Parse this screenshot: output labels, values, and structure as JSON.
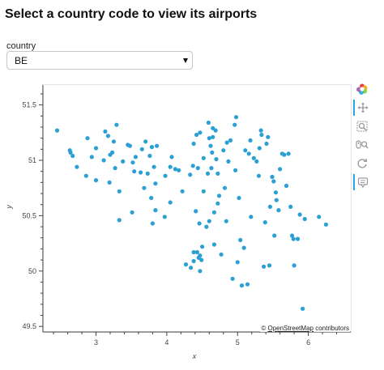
{
  "header": {
    "title": "Select a country code to view its airports"
  },
  "selector": {
    "label": "country",
    "selected": "BE"
  },
  "attribution": {
    "prefix": "© ",
    "link_text": "OpenStreetMap",
    "suffix": " contributors"
  },
  "toolbar": [
    {
      "name": "bokeh-logo-icon",
      "tool": "logo",
      "active": false
    },
    {
      "name": "pan-tool-icon",
      "tool": "pan",
      "active": true
    },
    {
      "name": "box-zoom-tool-icon",
      "tool": "box-zoom",
      "active": false
    },
    {
      "name": "wheel-zoom-tool-icon",
      "tool": "wheel-zoom",
      "active": false
    },
    {
      "name": "reset-tool-icon",
      "tool": "reset",
      "active": false
    },
    {
      "name": "hover-tool-icon",
      "tool": "hover",
      "active": true
    }
  ],
  "chart_data": {
    "type": "scatter",
    "title": "",
    "xlabel": "x",
    "ylabel": "y",
    "xlim": [
      2.25,
      6.6
    ],
    "ylim": [
      49.45,
      51.68
    ],
    "x_ticks": [
      3,
      4,
      5,
      6
    ],
    "y_ticks": [
      49.5,
      50,
      50.5,
      51,
      51.5
    ],
    "x_tick_labels": [
      "3",
      "4",
      "5",
      "6"
    ],
    "y_tick_labels": [
      "49.5",
      "50",
      "50.5",
      "51",
      "51.5"
    ],
    "grid": false,
    "point_color": "#2ca0d4",
    "x": [
      2.45,
      2.63,
      2.64,
      2.67,
      2.73,
      2.88,
      2.86,
      2.94,
      3.0,
      3.13,
      3.11,
      3.17,
      3.19,
      3.2,
      3.23,
      3.25,
      3.29,
      3.27,
      3.33,
      3.38,
      3.45,
      3.48,
      3.52,
      3.54,
      3.51,
      3.56,
      3.63,
      3.65,
      3.7,
      3.73,
      3.76,
      3.78,
      3.79,
      3.8,
      3.82,
      3.84,
      3.86,
      3.98,
      3.97,
      4.05,
      4.07,
      4.12,
      4.17,
      4.22,
      4.27,
      4.33,
      4.37,
      4.38,
      4.38,
      4.41,
      4.42,
      4.44,
      4.46,
      4.47,
      4.47,
      4.49,
      4.5,
      4.52,
      4.52,
      4.58,
      4.59,
      4.6,
      4.62,
      4.63,
      4.64,
      4.65,
      4.67,
      4.67,
      4.69,
      4.7,
      4.72,
      4.74,
      4.77,
      4.8,
      4.82,
      4.84,
      4.85,
      4.87,
      4.9,
      4.93,
      4.96,
      4.97,
      4.98,
      5.0,
      5.02,
      5.04,
      5.06,
      5.09,
      5.11,
      5.14,
      5.16,
      5.18,
      5.19,
      5.23,
      5.27,
      5.3,
      5.31,
      5.33,
      5.34,
      5.37,
      5.39,
      5.41,
      5.43,
      5.45,
      5.46,
      5.49,
      5.51,
      5.52,
      5.54,
      5.55,
      5.58,
      5.6,
      5.63,
      5.66,
      5.69,
      5.72,
      5.75,
      5.77,
      5.79,
      5.8,
      5.85,
      5.88,
      5.92,
      5.95,
      6.15,
      6.25,
      3.84,
      3.68,
      4.43,
      4.45,
      4.47,
      4.38,
      4.34,
      4.6,
      4.65,
      4.05,
      3.0,
      3.33,
      4.72,
      4.56
    ],
    "y": [
      51.27,
      51.09,
      51.07,
      51.04,
      50.94,
      51.2,
      50.86,
      51.03,
      50.82,
      51.26,
      51.0,
      51.22,
      50.8,
      51.05,
      51.07,
      51.17,
      51.32,
      50.93,
      50.72,
      50.99,
      51.14,
      51.13,
      50.98,
      50.9,
      50.53,
      51.03,
      50.89,
      51.1,
      51.17,
      50.88,
      51.04,
      50.66,
      51.12,
      50.43,
      50.94,
      50.55,
      51.13,
      50.86,
      50.49,
      50.94,
      51.03,
      50.92,
      50.91,
      50.72,
      50.06,
      50.87,
      50.95,
      51.15,
      50.17,
      50.54,
      51.23,
      50.93,
      50.43,
      51.25,
      50.14,
      50.1,
      50.22,
      51.02,
      50.72,
      50.88,
      51.34,
      51.2,
      51.13,
      50.93,
      51.07,
      51.29,
      50.53,
      50.24,
      51.27,
      51.01,
      50.61,
      50.68,
      50.15,
      51.09,
      50.75,
      50.45,
      51.16,
      50.99,
      51.18,
      49.93,
      51.32,
      50.91,
      51.39,
      50.08,
      50.66,
      50.28,
      49.87,
      50.21,
      51.09,
      49.88,
      51.06,
      51.18,
      50.49,
      51.02,
      50.99,
      50.86,
      51.11,
      51.27,
      51.23,
      50.04,
      50.44,
      51.15,
      51.21,
      50.05,
      50.58,
      50.85,
      50.81,
      50.32,
      50.71,
      50.64,
      50.55,
      50.92,
      51.06,
      51.05,
      50.77,
      51.06,
      50.58,
      50.32,
      50.29,
      50.05,
      50.29,
      50.51,
      49.66,
      50.47,
      50.49,
      50.42,
      50.79,
      50.75,
      50.17,
      50.12,
      50.0,
      50.09,
      50.03,
      50.45,
      51.21,
      50.62,
      51.11,
      50.46,
      50.88,
      50.4
    ]
  }
}
